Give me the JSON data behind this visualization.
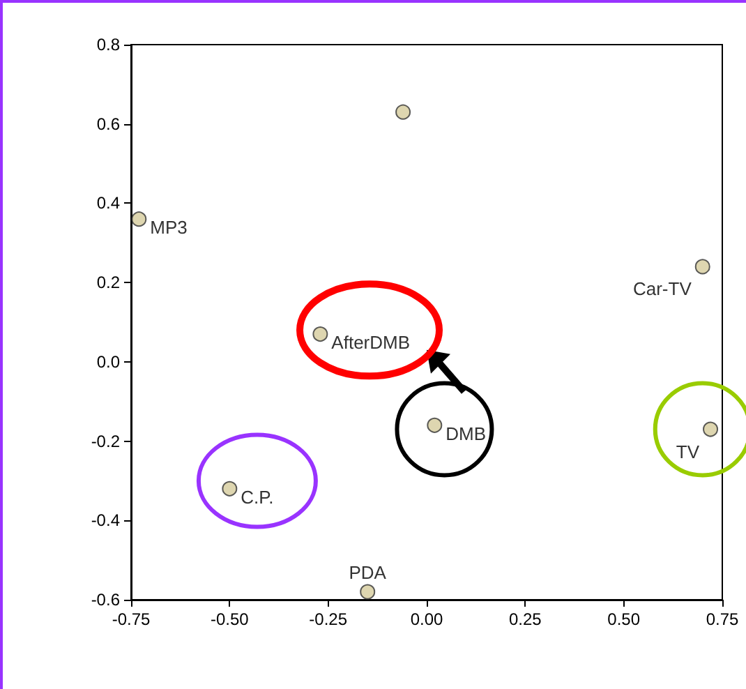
{
  "chart_data": {
    "type": "scatter",
    "x": [
      -0.73,
      -0.06,
      0.7,
      -0.27,
      0.02,
      0.72,
      -0.5,
      -0.15
    ],
    "values": [
      0.36,
      0.63,
      0.24,
      0.07,
      -0.16,
      -0.17,
      -0.32,
      -0.58
    ],
    "color": "#d6cc9c",
    "marker": "circle",
    "grid": false,
    "legend": false,
    "xlim": [
      -0.75,
      0.75
    ],
    "xticks": [
      {
        "value": -0.75,
        "label": "-0.75"
      },
      {
        "value": -0.5,
        "label": "-0.50"
      },
      {
        "value": -0.25,
        "label": "-0.25"
      },
      {
        "value": 0,
        "label": "0.00"
      },
      {
        "value": 0.25,
        "label": "0.25"
      },
      {
        "value": 0.5,
        "label": "0.50"
      },
      {
        "value": 0.75,
        "label": "0.75"
      }
    ],
    "ylim": [
      -0.6,
      0.8
    ],
    "yticks": [
      {
        "value": -0.6,
        "label": "-0.6"
      },
      {
        "value": -0.4,
        "label": "-0.4"
      },
      {
        "value": -0.2,
        "label": "-0.2"
      },
      {
        "value": 0,
        "label": "0.0"
      },
      {
        "value": 0.2,
        "label": "0.2"
      },
      {
        "value": 0.4,
        "label": "0.4"
      },
      {
        "value": 0.6,
        "label": "0.6"
      },
      {
        "value": 0.8,
        "label": "0.8"
      }
    ],
    "annotations": [
      {
        "text": "MP3",
        "x": -0.73,
        "y": 0.36
      },
      {
        "text": "Car-TV",
        "x": 0.7,
        "y": 0.24
      },
      {
        "text": "AfterDMB",
        "x": -0.27,
        "y": 0.07
      },
      {
        "text": "DMB",
        "x": 0.02,
        "y": -0.16
      },
      {
        "text": "TV",
        "x": 0.72,
        "y": -0.17
      },
      {
        "text": "C.P.",
        "x": -0.5,
        "y": -0.32
      },
      {
        "text": "PDA",
        "x": -0.15,
        "y": -0.58
      }
    ]
  }
}
